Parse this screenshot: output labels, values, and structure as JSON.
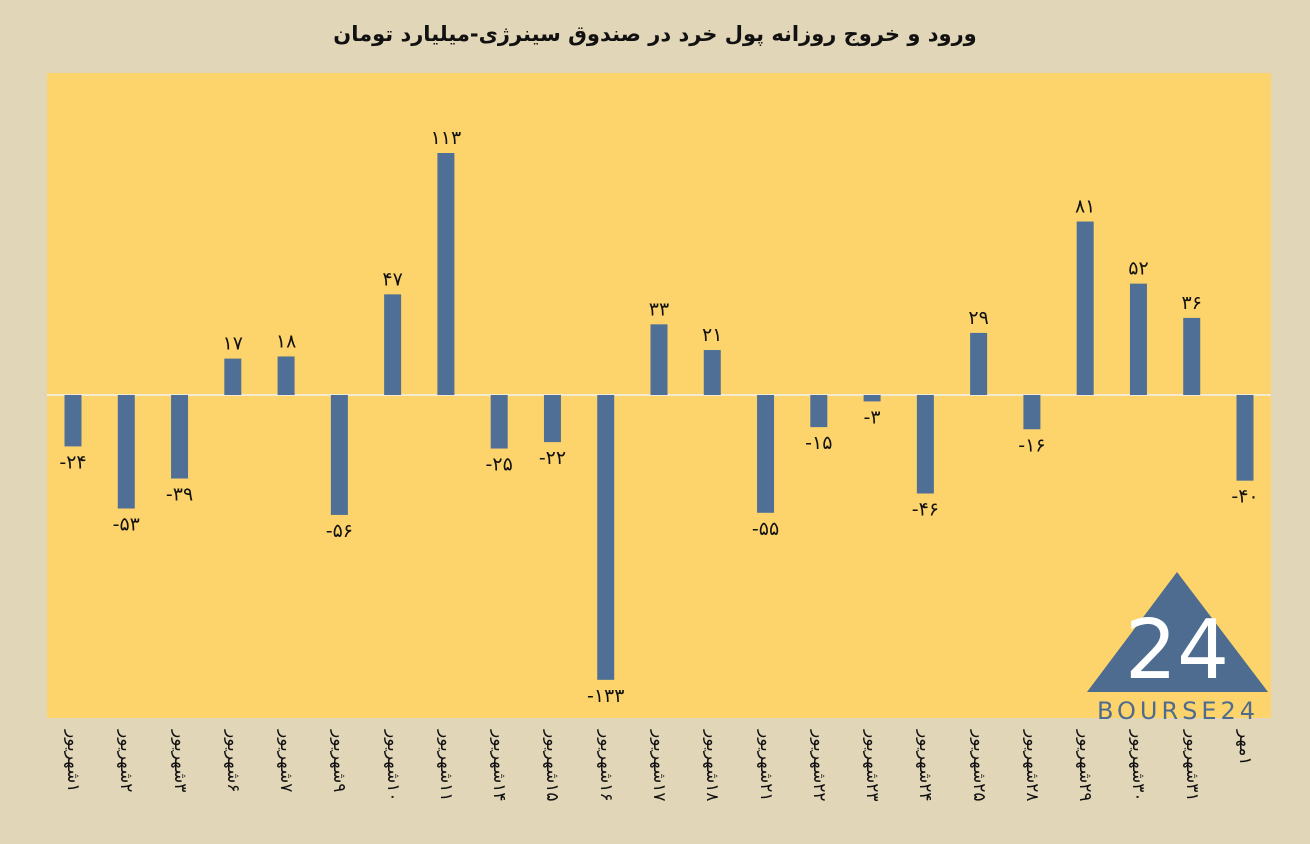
{
  "chart_data": {
    "type": "bar",
    "title": "ورود و خروج روزانه پول خرد در صندوق سینرژی-میلیارد تومان",
    "categories": [
      "۱شهریور",
      "۲شهریور",
      "۳شهریور",
      "۶شهریور",
      "۷شهریور",
      "۹شهریور",
      "۱۰شهریور",
      "۱۱شهریور",
      "۱۴شهریور",
      "۱۵شهریور",
      "۱۶شهریور",
      "۱۷شهریور",
      "۱۸شهریور",
      "۲۱شهریور",
      "۲۲شهریور",
      "۲۳شهریور",
      "۲۴شهریور",
      "۲۵شهریور",
      "۲۸شهریور",
      "۲۹شهریور",
      "۳۰شهریور",
      "۳۱شهریور",
      "۱مهر"
    ],
    "values": [
      -24,
      -53,
      -39,
      17,
      18,
      -56,
      47,
      113,
      -25,
      -22,
      -133,
      33,
      21,
      -55,
      -15,
      -3,
      -46,
      29,
      -16,
      81,
      52,
      36,
      -40
    ],
    "value_labels": [
      "-۲۴",
      "-۵۳",
      "-۳۹",
      "۱۷",
      "۱۸",
      "-۵۶",
      "۴۷",
      "۱۱۳",
      "-۲۵",
      "-۲۲",
      "-۱۳۳",
      "۳۳",
      "۲۱",
      "-۵۵",
      "-۱۵",
      "-۳",
      "-۴۶",
      "۲۹",
      "-۱۶",
      "۸۱",
      "۵۲",
      "۳۶",
      "-۴۰"
    ],
    "ylim": [
      -150,
      150
    ],
    "grid": false,
    "bar_color": "#4f6f96",
    "plot_background": "#fdd46b",
    "zero_line_color": "#f3ead2"
  },
  "logo": {
    "mark": "24",
    "text": "BOURSE24",
    "color": "#4d6c8f"
  }
}
